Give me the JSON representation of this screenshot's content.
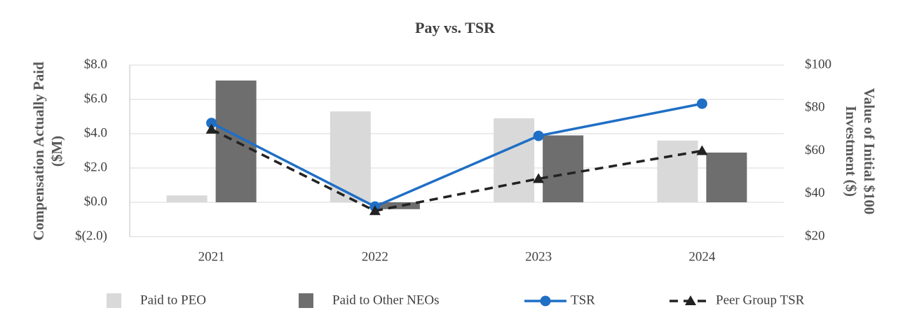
{
  "chart_data": {
    "type": "bar",
    "title": "Pay vs. TSR",
    "y_label": "Compensation Actually Paid ($M)",
    "y2_label": "Value of Initial $100 Investment ($)",
    "categories": [
      "2021",
      "2022",
      "2023",
      "2024"
    ],
    "series": [
      {
        "name": "Paid to PEO",
        "type": "bar",
        "color": "#d9d9d9",
        "values": [
          0.4,
          5.3,
          4.9,
          3.6
        ]
      },
      {
        "name": "Paid to Other NEOs",
        "type": "bar",
        "color": "#6e6e6e",
        "values": [
          7.1,
          -0.4,
          3.9,
          2.9
        ]
      },
      {
        "name": "TSR",
        "type": "line",
        "axis": "y2",
        "color": "#1f6fc5",
        "marker": "circle",
        "dashed": false,
        "values": [
          73,
          34,
          67,
          82
        ]
      },
      {
        "name": "Peer Group TSR",
        "type": "line",
        "axis": "y2",
        "color": "#222222",
        "marker": "triangle",
        "dashed": true,
        "values": [
          70,
          32,
          47,
          60
        ]
      }
    ],
    "ylim": [
      -2,
      8
    ],
    "yticks": [
      {
        "value": -2,
        "label": "$(2.0)"
      },
      {
        "value": 0,
        "label": "$0.0"
      },
      {
        "value": 2,
        "label": "$2.0"
      },
      {
        "value": 4,
        "label": "$4.0"
      },
      {
        "value": 6,
        "label": "$6.0"
      },
      {
        "value": 8,
        "label": "$8.0"
      }
    ],
    "y2lim": [
      20,
      100
    ],
    "y2ticks": [
      {
        "value": 20,
        "label": "$20"
      },
      {
        "value": 40,
        "label": "$40"
      },
      {
        "value": 60,
        "label": "$60"
      },
      {
        "value": 80,
        "label": "$80"
      },
      {
        "value": 100,
        "label": "$100"
      }
    ],
    "grid": true
  }
}
